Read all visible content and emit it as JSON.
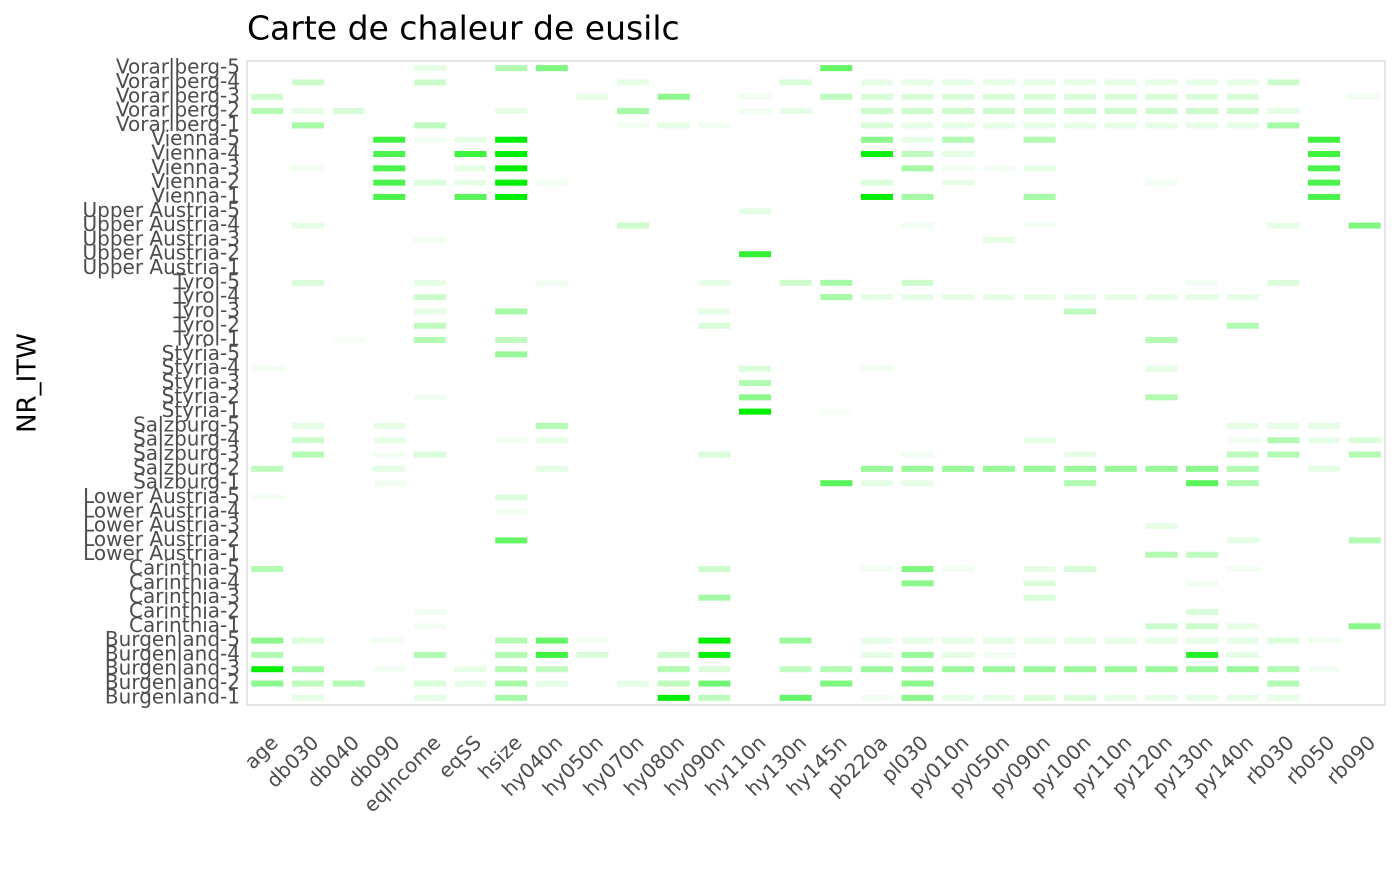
{
  "chart_data": {
    "type": "heatmap",
    "title": "Carte de chaleur de eusilc",
    "y_label": "NR_ITW",
    "x_categories": [
      "age",
      "db030",
      "db040",
      "db090",
      "eqIncome",
      "eqSS",
      "hsize",
      "hy040n",
      "hy050n",
      "hy070n",
      "hy080n",
      "hy090n",
      "hy110n",
      "hy130n",
      "hy145n",
      "pb220a",
      "pl030",
      "py010n",
      "py050n",
      "py090n",
      "py100n",
      "py110n",
      "py120n",
      "py130n",
      "py140n",
      "rb030",
      "rb050",
      "rb090"
    ],
    "y_categories": [
      "Burgenland-1",
      "Burgenland-2",
      "Burgenland-3",
      "Burgenland-4",
      "Burgenland-5",
      "Carinthia-1",
      "Carinthia-2",
      "Carinthia-3",
      "Carinthia-4",
      "Carinthia-5",
      "Lower Austria-1",
      "Lower Austria-2",
      "Lower Austria-3",
      "Lower Austria-4",
      "Lower Austria-5",
      "Salzburg-1",
      "Salzburg-2",
      "Salzburg-3",
      "Salzburg-4",
      "Salzburg-5",
      "Styria-1",
      "Styria-2",
      "Styria-3",
      "Styria-4",
      "Styria-5",
      "Tyrol-1",
      "Tyrol-2",
      "Tyrol-3",
      "Tyrol-4",
      "Tyrol-5",
      "Upper Austria-1",
      "Upper Austria-2",
      "Upper Austria-3",
      "Upper Austria-4",
      "Upper Austria-5",
      "Vienna-1",
      "Vienna-2",
      "Vienna-3",
      "Vienna-4",
      "Vienna-5",
      "Vorarlberg-1",
      "Vorarlberg-2",
      "Vorarlberg-3",
      "Vorarlberg-4",
      "Vorarlberg-5"
    ],
    "color_low": "#ffffff",
    "color_high": "#00ee00",
    "values": [
      [
        0,
        0.1,
        0,
        0,
        0.1,
        0,
        0.35,
        0,
        0,
        0,
        1,
        0.25,
        0,
        0.6,
        0,
        0.05,
        0.45,
        0.1,
        0.1,
        0.15,
        0.15,
        0.1,
        0.1,
        0.1,
        0.1,
        0.1,
        0,
        0
      ],
      [
        0.45,
        0.25,
        0.3,
        0,
        0.15,
        0.1,
        0.35,
        0.1,
        0,
        0.1,
        0.25,
        0.55,
        0,
        0,
        0.5,
        0,
        0.45,
        0,
        0,
        0,
        0,
        0,
        0,
        0,
        0,
        0.3,
        0,
        0
      ],
      [
        1,
        0.35,
        0,
        0.05,
        0,
        0.1,
        0.3,
        0.25,
        0,
        0,
        0.3,
        0.15,
        0,
        0.25,
        0.3,
        0.4,
        0.4,
        0.4,
        0.4,
        0.4,
        0.4,
        0.4,
        0.4,
        0.4,
        0.4,
        0.3,
        0.05,
        0
      ],
      [
        0.3,
        0,
        0,
        0,
        0.3,
        0,
        0.3,
        0.75,
        0.15,
        0,
        0.2,
        0.95,
        0,
        0,
        0,
        0.1,
        0.4,
        0.1,
        0.05,
        0,
        0,
        0,
        0,
        0.85,
        0.1,
        0,
        0,
        0
      ],
      [
        0.45,
        0.15,
        0,
        0.05,
        0,
        0,
        0.3,
        0.6,
        0.05,
        0,
        0,
        1,
        0,
        0.4,
        0,
        0.1,
        0.1,
        0.1,
        0.1,
        0.1,
        0.1,
        0.1,
        0.1,
        0.1,
        0.1,
        0.15,
        0.05,
        0
      ],
      [
        0,
        0,
        0,
        0,
        0.05,
        0,
        0,
        0,
        0,
        0,
        0,
        0,
        0,
        0,
        0,
        0,
        0,
        0,
        0,
        0,
        0,
        0,
        0.2,
        0.2,
        0.1,
        0,
        0,
        0.45
      ],
      [
        0,
        0,
        0,
        0,
        0.05,
        0,
        0,
        0,
        0,
        0,
        0,
        0,
        0,
        0,
        0,
        0,
        0,
        0,
        0,
        0,
        0,
        0,
        0,
        0.15,
        0,
        0,
        0,
        0
      ],
      [
        0,
        0,
        0,
        0,
        0,
        0,
        0,
        0,
        0,
        0,
        0,
        0.35,
        0,
        0,
        0,
        0,
        0,
        0,
        0,
        0.15,
        0,
        0,
        0,
        0,
        0,
        0,
        0,
        0
      ],
      [
        0,
        0,
        0,
        0,
        0,
        0,
        0,
        0,
        0,
        0,
        0,
        0,
        0,
        0,
        0,
        0,
        0.45,
        0,
        0,
        0.15,
        0,
        0,
        0,
        0.05,
        0,
        0,
        0,
        0
      ],
      [
        0.3,
        0,
        0,
        0,
        0,
        0,
        0,
        0,
        0,
        0,
        0,
        0.2,
        0,
        0,
        0,
        0.05,
        0.5,
        0.05,
        0,
        0.1,
        0.15,
        0,
        0,
        0,
        0.05,
        0,
        0,
        0
      ],
      [
        0,
        0,
        0,
        0,
        0,
        0,
        0,
        0,
        0,
        0,
        0,
        0,
        0,
        0,
        0,
        0,
        0,
        0,
        0,
        0,
        0,
        0,
        0.3,
        0.25,
        0,
        0,
        0,
        0
      ],
      [
        0,
        0,
        0,
        0,
        0,
        0,
        0.6,
        0,
        0,
        0,
        0,
        0,
        0,
        0,
        0,
        0,
        0,
        0,
        0,
        0,
        0,
        0,
        0,
        0,
        0.1,
        0,
        0,
        0.3
      ],
      [
        0,
        0,
        0,
        0,
        0,
        0,
        0,
        0,
        0,
        0,
        0,
        0,
        0,
        0,
        0,
        0,
        0,
        0,
        0,
        0,
        0,
        0,
        0.1,
        0,
        0,
        0,
        0,
        0
      ],
      [
        0,
        0,
        0,
        0,
        0,
        0,
        0.05,
        0,
        0,
        0,
        0,
        0,
        0,
        0,
        0,
        0,
        0,
        0,
        0,
        0,
        0,
        0,
        0,
        0,
        0,
        0,
        0,
        0
      ],
      [
        0.05,
        0,
        0,
        0,
        0,
        0,
        0.15,
        0,
        0,
        0,
        0,
        0,
        0,
        0,
        0,
        0,
        0,
        0,
        0,
        0,
        0,
        0,
        0,
        0,
        0,
        0,
        0,
        0
      ],
      [
        0,
        0,
        0,
        0.05,
        0,
        0,
        0,
        0,
        0,
        0,
        0,
        0,
        0,
        0,
        0.65,
        0.1,
        0.1,
        0,
        0,
        0,
        0.3,
        0,
        0,
        0.65,
        0.3,
        0,
        0,
        0
      ],
      [
        0.25,
        0,
        0,
        0.1,
        0,
        0,
        0,
        0.1,
        0,
        0,
        0,
        0,
        0,
        0,
        0,
        0.4,
        0.4,
        0.4,
        0.4,
        0.4,
        0.4,
        0.4,
        0.4,
        0.45,
        0.3,
        0,
        0.1,
        0
      ],
      [
        0,
        0.3,
        0,
        0.05,
        0.15,
        0,
        0,
        0,
        0,
        0,
        0,
        0.15,
        0,
        0,
        0,
        0,
        0.05,
        0,
        0,
        0,
        0.1,
        0,
        0,
        0,
        0.25,
        0.3,
        0,
        0.3
      ],
      [
        0,
        0.2,
        0,
        0.1,
        0,
        0,
        0.05,
        0.1,
        0,
        0,
        0,
        0,
        0,
        0,
        0,
        0,
        0,
        0,
        0,
        0.1,
        0,
        0,
        0,
        0,
        0.05,
        0.3,
        0.1,
        0.15
      ],
      [
        0,
        0.1,
        0,
        0.1,
        0,
        0,
        0,
        0.3,
        0,
        0,
        0,
        0,
        0,
        0,
        0,
        0,
        0,
        0,
        0,
        0,
        0,
        0,
        0,
        0,
        0.1,
        0.1,
        0.1,
        0
      ],
      [
        0,
        0,
        0,
        0,
        0,
        0,
        0,
        0,
        0,
        0,
        0,
        0,
        1,
        0,
        0.03,
        0,
        0,
        0,
        0,
        0,
        0,
        0,
        0,
        0,
        0,
        0,
        0,
        0
      ],
      [
        0,
        0,
        0,
        0,
        0.05,
        0,
        0,
        0,
        0,
        0,
        0,
        0,
        0.45,
        0,
        0,
        0,
        0,
        0,
        0,
        0,
        0,
        0,
        0.3,
        0,
        0,
        0,
        0,
        0
      ],
      [
        0,
        0,
        0,
        0,
        0,
        0,
        0,
        0,
        0,
        0,
        0,
        0,
        0.3,
        0,
        0,
        0,
        0,
        0,
        0,
        0,
        0,
        0,
        0,
        0,
        0,
        0,
        0,
        0
      ],
      [
        0.05,
        0,
        0,
        0,
        0,
        0,
        0,
        0,
        0,
        0,
        0,
        0,
        0.15,
        0,
        0,
        0.05,
        0,
        0,
        0,
        0,
        0,
        0,
        0.1,
        0,
        0,
        0,
        0,
        0
      ],
      [
        0,
        0,
        0,
        0,
        0,
        0,
        0.4,
        0,
        0,
        0,
        0,
        0,
        0,
        0,
        0,
        0,
        0,
        0,
        0,
        0,
        0,
        0,
        0,
        0,
        0,
        0,
        0,
        0
      ],
      [
        0,
        0,
        0.03,
        0,
        0.3,
        0,
        0.25,
        0,
        0,
        0,
        0,
        0,
        0,
        0,
        0,
        0,
        0,
        0,
        0,
        0,
        0,
        0,
        0.3,
        0,
        0,
        0,
        0,
        0
      ],
      [
        0,
        0,
        0,
        0,
        0.25,
        0,
        0,
        0,
        0,
        0,
        0,
        0.15,
        0,
        0,
        0,
        0,
        0,
        0,
        0,
        0,
        0,
        0,
        0,
        0,
        0.3,
        0,
        0,
        0
      ],
      [
        0,
        0,
        0,
        0,
        0.1,
        0,
        0.35,
        0,
        0,
        0,
        0,
        0.1,
        0,
        0,
        0,
        0,
        0,
        0,
        0,
        0,
        0.25,
        0,
        0,
        0,
        0,
        0,
        0,
        0
      ],
      [
        0,
        0,
        0,
        0,
        0.2,
        0,
        0,
        0,
        0,
        0,
        0,
        0,
        0,
        0,
        0.35,
        0.1,
        0.1,
        0.1,
        0.1,
        0.1,
        0.1,
        0.1,
        0.1,
        0.1,
        0.1,
        0,
        0,
        0
      ],
      [
        0,
        0.15,
        0,
        0,
        0.1,
        0,
        0,
        0.05,
        0,
        0,
        0,
        0.1,
        0,
        0.2,
        0.35,
        0,
        0.2,
        0,
        0,
        0,
        0,
        0,
        0,
        0.05,
        0,
        0.15,
        0,
        0
      ],
      [
        0,
        0,
        0,
        0,
        0,
        0,
        0,
        0,
        0,
        0,
        0,
        0,
        0,
        0,
        0,
        0,
        0,
        0,
        0,
        0,
        0,
        0,
        0,
        0,
        0,
        0,
        0,
        0
      ],
      [
        0,
        0,
        0,
        0,
        0,
        0,
        0,
        0,
        0,
        0,
        0,
        0,
        0.8,
        0,
        0,
        0,
        0,
        0,
        0,
        0,
        0,
        0,
        0,
        0,
        0,
        0,
        0,
        0
      ],
      [
        0,
        0,
        0,
        0,
        0.05,
        0,
        0,
        0,
        0,
        0,
        0,
        0,
        0,
        0,
        0,
        0,
        0,
        0,
        0.1,
        0,
        0,
        0,
        0,
        0,
        0,
        0,
        0,
        0
      ],
      [
        0,
        0.1,
        0,
        0,
        0,
        0,
        0,
        0,
        0,
        0.2,
        0,
        0,
        0,
        0,
        0,
        0,
        0.05,
        0,
        0,
        0.05,
        0,
        0,
        0,
        0,
        0,
        0.1,
        0,
        0.5
      ],
      [
        0,
        0,
        0,
        0,
        0,
        0,
        0,
        0,
        0,
        0,
        0,
        0,
        0.1,
        0,
        0,
        0,
        0,
        0,
        0,
        0,
        0,
        0,
        0,
        0,
        0,
        0,
        0,
        0
      ],
      [
        0,
        0,
        0,
        0.7,
        0,
        0.65,
        1,
        0,
        0,
        0,
        0,
        0,
        0,
        0,
        0,
        1,
        0.35,
        0,
        0,
        0.35,
        0,
        0,
        0,
        0,
        0,
        0,
        0.7,
        0
      ],
      [
        0,
        0,
        0,
        0.7,
        0.15,
        0.1,
        1,
        0.05,
        0,
        0,
        0,
        0,
        0,
        0,
        0,
        0.15,
        0,
        0.1,
        0,
        0,
        0,
        0,
        0.05,
        0,
        0,
        0,
        0.7,
        0
      ],
      [
        0,
        0.05,
        0,
        0.7,
        0,
        0.1,
        1,
        0,
        0,
        0,
        0,
        0,
        0,
        0,
        0,
        0,
        0.35,
        0.05,
        0.05,
        0.1,
        0,
        0,
        0,
        0,
        0,
        0,
        0.7,
        0
      ],
      [
        0,
        0,
        0,
        0.7,
        0,
        0.75,
        1,
        0,
        0,
        0,
        0,
        0,
        0,
        0,
        0,
        0.95,
        0.25,
        0.1,
        0,
        0,
        0,
        0,
        0,
        0,
        0,
        0,
        0.75,
        0
      ],
      [
        0,
        0,
        0,
        0.75,
        0.05,
        0.1,
        1,
        0,
        0,
        0,
        0,
        0,
        0,
        0,
        0,
        0.45,
        0.1,
        0.3,
        0,
        0.3,
        0,
        0,
        0,
        0,
        0,
        0,
        0.75,
        0
      ],
      [
        0,
        0.35,
        0,
        0,
        0.25,
        0,
        0,
        0,
        0,
        0.05,
        0.1,
        0.05,
        0,
        0,
        0,
        0.15,
        0.1,
        0.1,
        0.1,
        0.1,
        0.1,
        0.1,
        0.1,
        0.1,
        0.1,
        0.35,
        0,
        0
      ],
      [
        0.3,
        0.1,
        0.15,
        0,
        0,
        0,
        0.1,
        0,
        0,
        0.35,
        0,
        0,
        0.05,
        0.1,
        0,
        0.2,
        0.2,
        0.2,
        0.2,
        0.2,
        0.2,
        0.2,
        0.2,
        0.2,
        0.2,
        0.1,
        0,
        0
      ],
      [
        0.2,
        0,
        0,
        0,
        0,
        0,
        0,
        0,
        0.1,
        0,
        0.45,
        0,
        0.05,
        0,
        0.25,
        0.15,
        0.15,
        0.15,
        0.15,
        0.15,
        0.15,
        0.15,
        0.15,
        0.15,
        0.15,
        0,
        0,
        0.05
      ],
      [
        0,
        0.2,
        0,
        0,
        0.2,
        0,
        0,
        0,
        0,
        0.1,
        0,
        0,
        0,
        0.15,
        0,
        0.1,
        0.1,
        0.1,
        0.1,
        0.1,
        0.1,
        0.1,
        0.1,
        0.1,
        0.1,
        0.2,
        0,
        0
      ],
      [
        0,
        0,
        0,
        0,
        0.1,
        0,
        0.3,
        0.5,
        0,
        0,
        0,
        0,
        0,
        0,
        0.6,
        0,
        0,
        0,
        0,
        0,
        0,
        0,
        0,
        0,
        0,
        0,
        0,
        0
      ]
    ]
  }
}
